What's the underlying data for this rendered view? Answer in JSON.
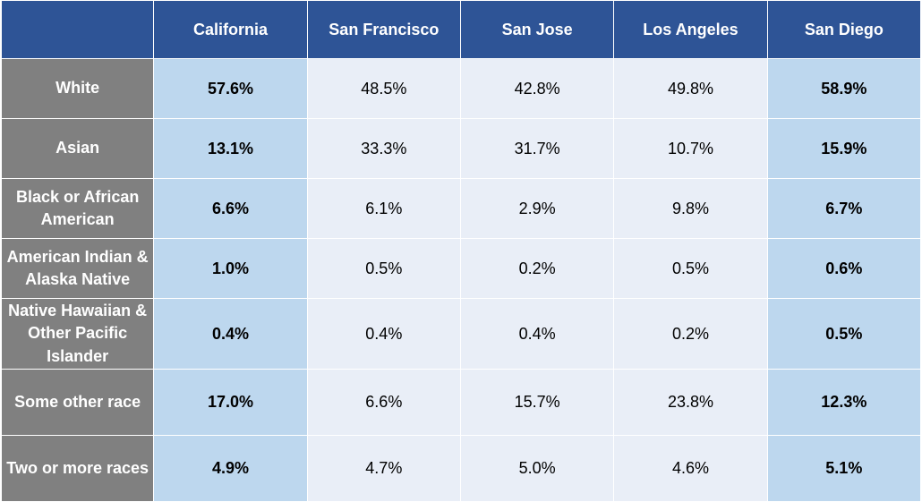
{
  "chart_data": {
    "type": "table",
    "columns": [
      "",
      "California",
      "San Francisco",
      "San Jose",
      "Los Angeles",
      "San Diego"
    ],
    "highlight_columns": [
      "California",
      "San Diego"
    ],
    "colors": {
      "header_bg": "#2e5496",
      "row_label_bg": "#808080",
      "highlight_cell_bg": "#bdd7ee",
      "normal_cell_bg": "#e9eef7"
    },
    "rows": [
      {
        "label": "White",
        "values": [
          "57.6%",
          "48.5%",
          "42.8%",
          "49.8%",
          "58.9%"
        ]
      },
      {
        "label": "Asian",
        "values": [
          "13.1%",
          "33.3%",
          "31.7%",
          "10.7%",
          "15.9%"
        ]
      },
      {
        "label": "Black or African American",
        "values": [
          "6.6%",
          "6.1%",
          "2.9%",
          "9.8%",
          "6.7%"
        ]
      },
      {
        "label": "American Indian & Alaska Native",
        "values": [
          "1.0%",
          "0.5%",
          "0.2%",
          "0.5%",
          "0.6%"
        ]
      },
      {
        "label": "Native Hawaiian & Other Pacific Islander",
        "values": [
          "0.4%",
          "0.4%",
          "0.4%",
          "0.2%",
          "0.5%"
        ]
      },
      {
        "label": "Some other race",
        "values": [
          "17.0%",
          "6.6%",
          "15.7%",
          "23.8%",
          "12.3%"
        ]
      },
      {
        "label": "Two or more races",
        "values": [
          "4.9%",
          "4.7%",
          "5.0%",
          "4.6%",
          "5.1%"
        ]
      }
    ]
  }
}
